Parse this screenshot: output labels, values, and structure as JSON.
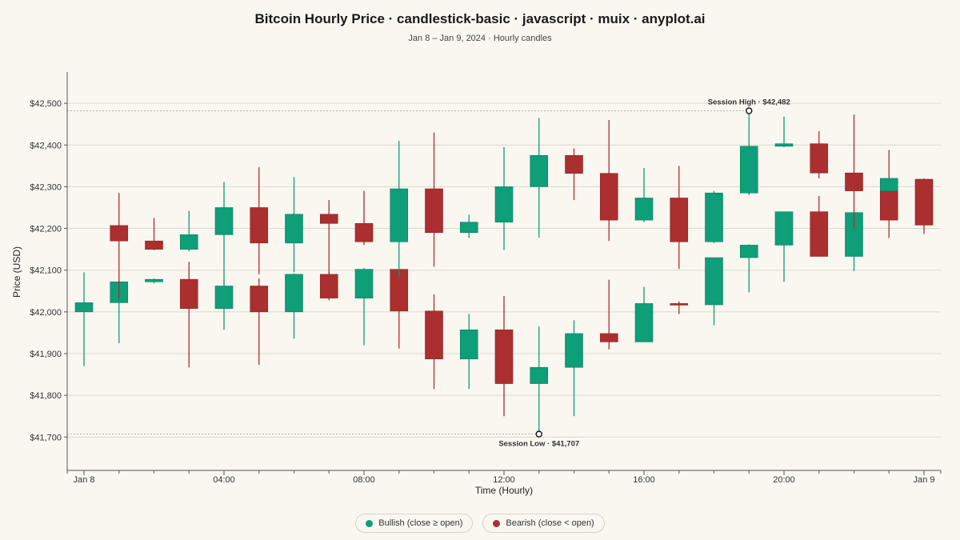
{
  "colors": {
    "bullish": "#0e9e78",
    "bearish": "#ab2f2f",
    "grid": "#dcd8d0",
    "axis": "#555555",
    "background": "#faf7f1"
  },
  "legend": {
    "bullish_label": "Bullish (close ≥ open)",
    "bearish_label": "Bearish (close < open)"
  },
  "chart_data": {
    "type": "candlestick",
    "title": "Bitcoin Hourly Price · candlestick-basic · javascript · muix · anyplot.ai",
    "subtitle": "Jan 8 – Jan 9, 2024 · Hourly candles",
    "xlabel": "Time (Hourly)",
    "ylabel": "Price (USD)",
    "ylim": [
      41620,
      42575
    ],
    "y_ticks": [
      41700,
      41800,
      41900,
      42000,
      42100,
      42200,
      42300,
      42400,
      42500
    ],
    "y_tick_labels": [
      "$41,700",
      "$41,800",
      "$41,900",
      "$42,000",
      "$42,100",
      "$42,200",
      "$42,300",
      "$42,400",
      "$42,500"
    ],
    "x_ticks": [
      {
        "hour": 0,
        "label": "Jan 8"
      },
      {
        "hour": 4,
        "label": "04:00"
      },
      {
        "hour": 8,
        "label": "08:00"
      },
      {
        "hour": 12,
        "label": "12:00"
      },
      {
        "hour": 16,
        "label": "16:00"
      },
      {
        "hour": 20,
        "label": "20:00"
      },
      {
        "hour": 24,
        "label": "Jan 9"
      }
    ],
    "grid": true,
    "legend_position": "bottom-center",
    "annotations": [
      {
        "label": "Session High · $42,482",
        "hour": 19,
        "price": 42482
      },
      {
        "label": "Session Low · $41,707",
        "hour": 13,
        "price": 41707
      }
    ],
    "candles": [
      {
        "hour": 0,
        "open": 42000,
        "high": 42095,
        "low": 41870,
        "close": 42022
      },
      {
        "hour": 1,
        "open": 42022,
        "high": 42075,
        "low": 41925,
        "close": 42072
      },
      {
        "hour": 1,
        "open": 42207,
        "high": 42285,
        "low": 42030,
        "close": 42170
      },
      {
        "hour": 2,
        "open": 42072,
        "high": 42080,
        "low": 42068,
        "close": 42078
      },
      {
        "hour": 2,
        "open": 42170,
        "high": 42225,
        "low": 42148,
        "close": 42150
      },
      {
        "hour": 3,
        "open": 42078,
        "high": 42120,
        "low": 41867,
        "close": 42008
      },
      {
        "hour": 3,
        "open": 42150,
        "high": 42242,
        "low": 42145,
        "close": 42185
      },
      {
        "hour": 4,
        "open": 42008,
        "high": 42078,
        "low": 41957,
        "close": 42062
      },
      {
        "hour": 4,
        "open": 42185,
        "high": 42312,
        "low": 42060,
        "close": 42250
      },
      {
        "hour": 5,
        "open": 42062,
        "high": 42080,
        "low": 41873,
        "close": 42000
      },
      {
        "hour": 5,
        "open": 42250,
        "high": 42347,
        "low": 42090,
        "close": 42165
      },
      {
        "hour": 6,
        "open": 42000,
        "high": 42092,
        "low": 41936,
        "close": 42090
      },
      {
        "hour": 6,
        "open": 42165,
        "high": 42323,
        "low": 42095,
        "close": 42234
      },
      {
        "hour": 7,
        "open": 42090,
        "high": 42095,
        "low": 42028,
        "close": 42033
      },
      {
        "hour": 7,
        "open": 42234,
        "high": 42268,
        "low": 42030,
        "close": 42212
      },
      {
        "hour": 8,
        "open": 42033,
        "high": 42105,
        "low": 41920,
        "close": 42102
      },
      {
        "hour": 8,
        "open": 42212,
        "high": 42290,
        "low": 42160,
        "close": 42168
      },
      {
        "hour": 9,
        "open": 42102,
        "high": 42103,
        "low": 41912,
        "close": 42002
      },
      {
        "hour": 9,
        "open": 42168,
        "high": 42410,
        "low": 42085,
        "close": 42295
      },
      {
        "hour": 10,
        "open": 42002,
        "high": 42042,
        "low": 41815,
        "close": 41887
      },
      {
        "hour": 10,
        "open": 42295,
        "high": 42430,
        "low": 42108,
        "close": 42190
      },
      {
        "hour": 11,
        "open": 41887,
        "high": 41995,
        "low": 41815,
        "close": 41957
      },
      {
        "hour": 11,
        "open": 42190,
        "high": 42233,
        "low": 42177,
        "close": 42215
      },
      {
        "hour": 12,
        "open": 41957,
        "high": 42038,
        "low": 41750,
        "close": 41828
      },
      {
        "hour": 12,
        "open": 42215,
        "high": 42395,
        "low": 42148,
        "close": 42300
      },
      {
        "hour": 13,
        "open": 41828,
        "high": 41965,
        "low": 41707,
        "close": 41867
      },
      {
        "hour": 13,
        "open": 42300,
        "high": 42465,
        "low": 42178,
        "close": 42375
      },
      {
        "hour": 14,
        "open": 41867,
        "high": 41980,
        "low": 41750,
        "close": 41948
      },
      {
        "hour": 14,
        "open": 42375,
        "high": 42392,
        "low": 42268,
        "close": 42332
      },
      {
        "hour": 15,
        "open": 41948,
        "high": 42077,
        "low": 41910,
        "close": 41928
      },
      {
        "hour": 15,
        "open": 42332,
        "high": 42460,
        "low": 42170,
        "close": 42220
      },
      {
        "hour": 16,
        "open": 41928,
        "high": 42060,
        "low": 41928,
        "close": 42020
      },
      {
        "hour": 16,
        "open": 42220,
        "high": 42345,
        "low": 42215,
        "close": 42273
      },
      {
        "hour": 17,
        "open": 42020,
        "high": 42025,
        "low": 41995,
        "close": 42017
      },
      {
        "hour": 17,
        "open": 42273,
        "high": 42350,
        "low": 42103,
        "close": 42168
      },
      {
        "hour": 18,
        "open": 42017,
        "high": 42130,
        "low": 41968,
        "close": 42130
      },
      {
        "hour": 18,
        "open": 42168,
        "high": 42290,
        "low": 42165,
        "close": 42285
      },
      {
        "hour": 19,
        "open": 42130,
        "high": 42162,
        "low": 42047,
        "close": 42160
      },
      {
        "hour": 19,
        "open": 42285,
        "high": 42482,
        "low": 42280,
        "close": 42397
      },
      {
        "hour": 20,
        "open": 42160,
        "high": 42240,
        "low": 42072,
        "close": 42240
      },
      {
        "hour": 20,
        "open": 42397,
        "high": 42468,
        "low": 42395,
        "close": 42403
      },
      {
        "hour": 21,
        "open": 42240,
        "high": 42278,
        "low": 42133,
        "close": 42133
      },
      {
        "hour": 21,
        "open": 42403,
        "high": 42433,
        "low": 42320,
        "close": 42333
      },
      {
        "hour": 22,
        "open": 42133,
        "high": 42238,
        "low": 42098,
        "close": 42238
      },
      {
        "hour": 22,
        "open": 42333,
        "high": 42473,
        "low": 42200,
        "close": 42290
      },
      {
        "hour": 23,
        "open": 42290,
        "high": 42388,
        "low": 42177,
        "close": 42220
      },
      {
        "hour": 23,
        "open": 42290,
        "high": 42320,
        "low": 42290,
        "close": 42320
      },
      {
        "hour": 24,
        "open": 42318,
        "high": 42320,
        "low": 42187,
        "close": 42208
      }
    ]
  }
}
